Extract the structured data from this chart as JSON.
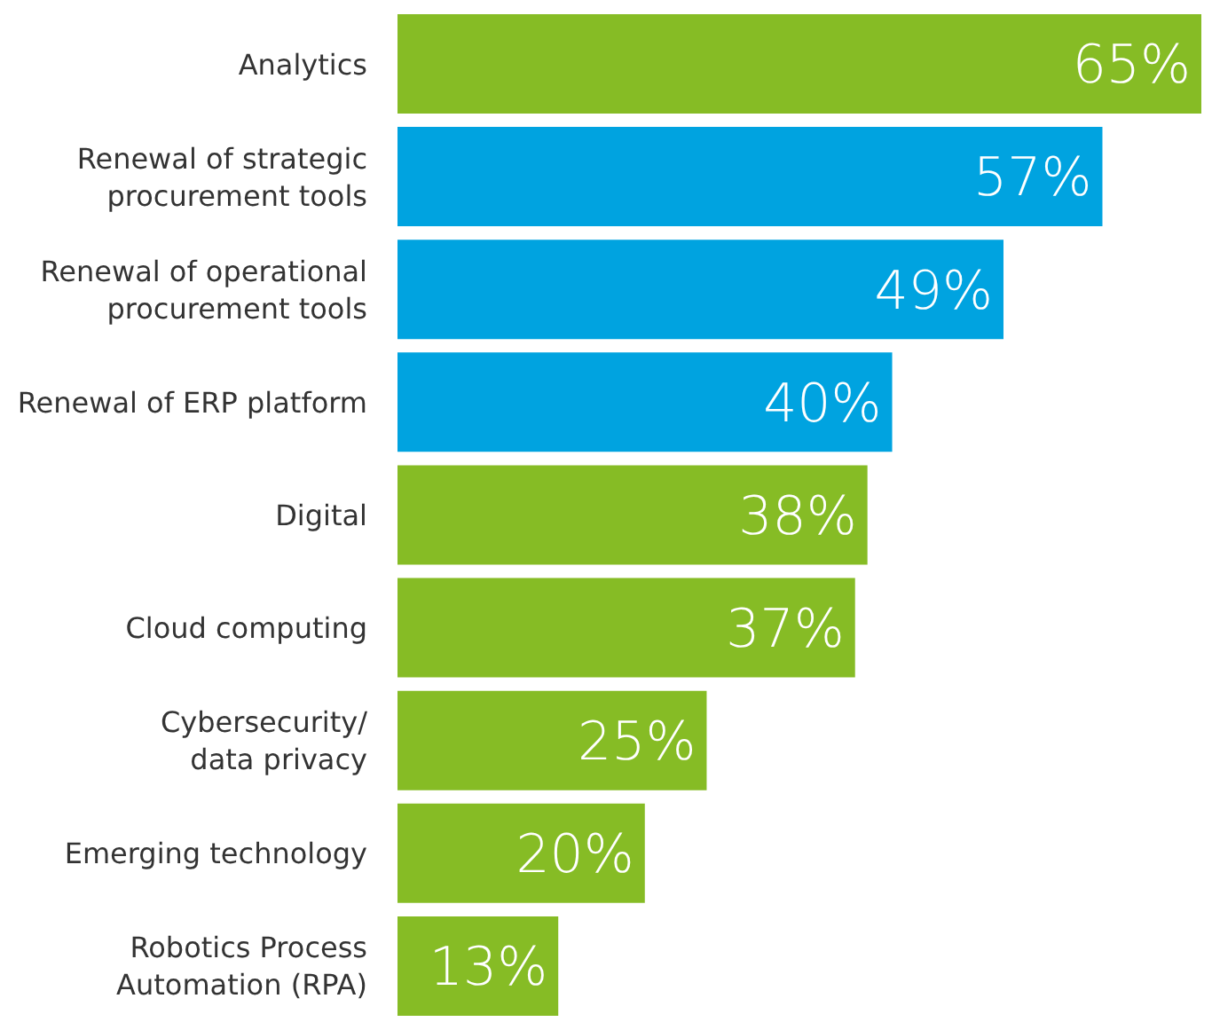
{
  "chart_data": {
    "type": "bar",
    "orientation": "horizontal",
    "categories": [
      "Analytics",
      "Renewal of strategic procurement tools",
      "Renewal of operational procurement tools",
      "Renewal of ERP platform",
      "Digital",
      "Cloud computing",
      "Cybersecurity/ data privacy",
      "Emerging technology",
      "Robotics Process Automation (RPA)"
    ],
    "values": [
      65,
      57,
      49,
      40,
      38,
      37,
      25,
      20,
      13
    ],
    "colors": [
      "#86bc25",
      "#00a3e0",
      "#00a3e0",
      "#00a3e0",
      "#86bc25",
      "#86bc25",
      "#86bc25",
      "#86bc25",
      "#86bc25"
    ],
    "value_labels": [
      "65%",
      "57%",
      "49%",
      "40%",
      "38%",
      "37%",
      "25%",
      "20%",
      "13%"
    ]
  }
}
